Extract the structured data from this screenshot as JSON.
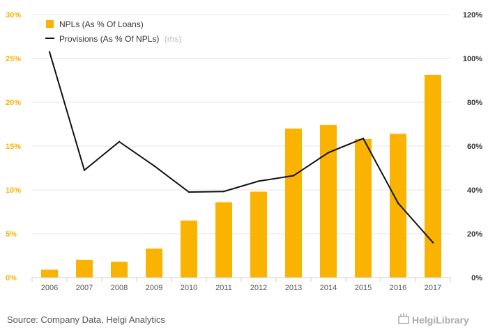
{
  "chart_data": {
    "type": "bar",
    "categories": [
      "2006",
      "2007",
      "2008",
      "2009",
      "2010",
      "2011",
      "2012",
      "2013",
      "2014",
      "2015",
      "2016",
      "2017"
    ],
    "series": [
      {
        "name": "NPLs (As % Of Loans)",
        "type": "bar",
        "axis": "left",
        "color": "#f9b300",
        "values": [
          0.9,
          2.0,
          1.8,
          3.3,
          6.5,
          8.6,
          9.8,
          17.0,
          17.4,
          15.8,
          16.4,
          23.1
        ]
      },
      {
        "name": "Provisions (As % Of NPLs)",
        "type": "line",
        "axis": "right",
        "color": "#111111",
        "values": [
          103,
          49,
          62,
          51,
          39,
          39.3,
          44,
          46.5,
          57,
          63.5,
          34,
          16
        ]
      }
    ],
    "legend_suffix": "(rhs)",
    "y_left": {
      "min": 0,
      "max": 30,
      "ticks": [
        "0%",
        "5%",
        "10%",
        "15%",
        "20%",
        "25%",
        "30%"
      ]
    },
    "y_right": {
      "min": 0,
      "max": 120,
      "ticks": [
        "0%",
        "20%",
        "40%",
        "60%",
        "80%",
        "100%",
        "120%"
      ]
    },
    "grid": true,
    "legend_position": "top-left"
  },
  "footer": {
    "source": "Source: Company Data, Helgi Analytics",
    "logo": "HelgiLibrary"
  }
}
